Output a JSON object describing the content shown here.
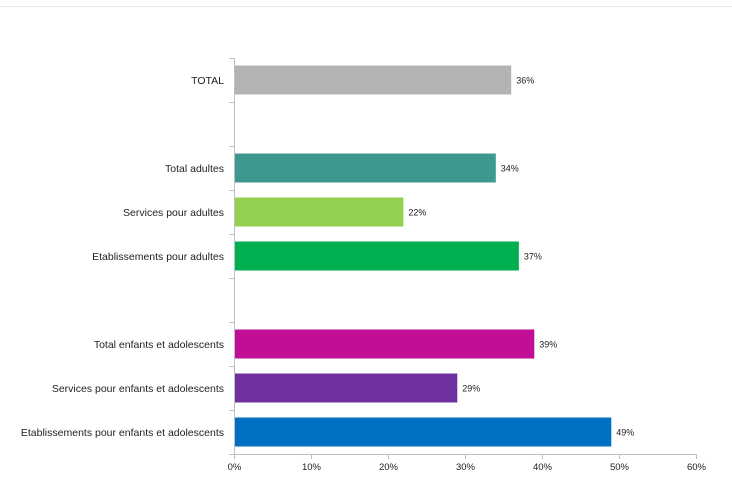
{
  "chart_data": {
    "type": "bar",
    "orientation": "horizontal",
    "categories": [
      "TOTAL",
      "",
      "Total adultes",
      "Services pour adultes",
      "Etablissements pour adultes",
      "",
      "Total enfants et adolescents",
      "Services pour enfants et adolescents",
      "Etablissements pour enfants et adolescents"
    ],
    "values": [
      36,
      null,
      34,
      22,
      37,
      null,
      39,
      29,
      49
    ],
    "data_labels": [
      "36%",
      "",
      "34%",
      "22%",
      "37%",
      "",
      "39%",
      "29%",
      "49%"
    ],
    "colors": [
      "#b3b3b5",
      null,
      "#3d9890",
      "#92d050",
      "#00b050",
      null,
      "#c00f96",
      "#7030a0",
      "#0070c0"
    ],
    "xlim": [
      0,
      60
    ],
    "x_ticks": [
      "0%",
      "10%",
      "20%",
      "30%",
      "40%",
      "50%",
      "60%"
    ],
    "x_tick_values": [
      0,
      10,
      20,
      30,
      40,
      50,
      60
    ],
    "grid": false,
    "legend": "none",
    "title": "",
    "xlabel": "",
    "ylabel": ""
  }
}
